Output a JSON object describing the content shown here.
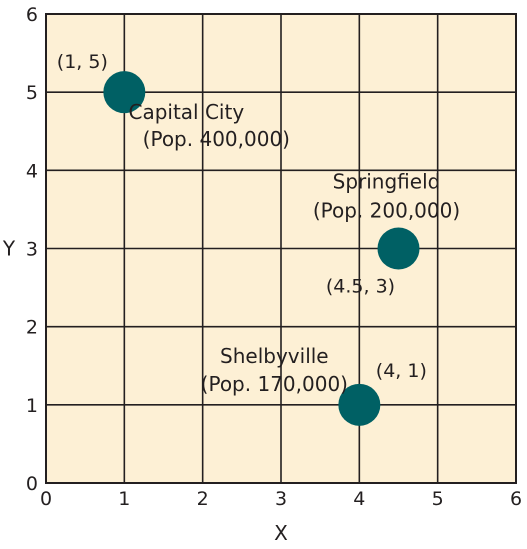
{
  "chart_data": {
    "type": "scatter",
    "xlabel": "X",
    "ylabel": "Y",
    "xlim": [
      0,
      6
    ],
    "ylim": [
      0,
      6
    ],
    "xticks": [
      "0",
      "1",
      "2",
      "3",
      "4",
      "5",
      "6"
    ],
    "yticks": [
      "0",
      "1",
      "2",
      "3",
      "4",
      "5",
      "6"
    ],
    "grid": true,
    "background_color": "#fdf0d5",
    "marker_color": "#006064",
    "points": [
      {
        "x": 1,
        "y": 5,
        "name": "Capital City",
        "population": "(Pop. 400,000)",
        "coord_label": "(1, 5)"
      },
      {
        "x": 4.5,
        "y": 3,
        "name": "Springfield",
        "population": "(Pop. 200,000)",
        "coord_label": "(4.5, 3)"
      },
      {
        "x": 4,
        "y": 1,
        "name": "Shelbyville",
        "population": "(Pop. 170,000)",
        "coord_label": "(4, 1)"
      }
    ]
  }
}
